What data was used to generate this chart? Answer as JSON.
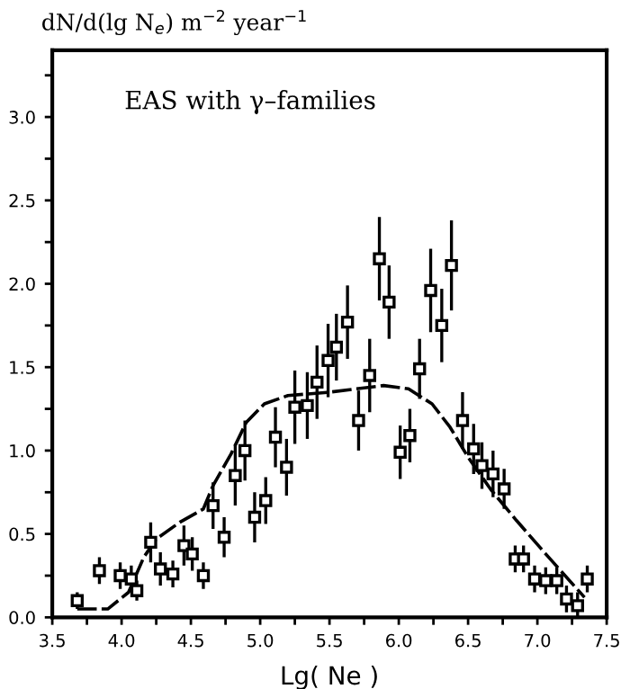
{
  "chart_data": {
    "type": "scatter",
    "title": "dN/d(lg N$_{e}$) m$^{−2}$ year$^{−1}$",
    "xlabel": "Lg( Ne )",
    "annotations": [
      "EAS with γ–families"
    ],
    "xlim": [
      3.5,
      7.5
    ],
    "ylim": [
      0,
      3.4
    ],
    "xticks": [
      {
        "value": 3.5,
        "label": "3.5"
      },
      {
        "value": 3.75,
        "label": null
      },
      {
        "value": 4.0,
        "label": "4.0"
      },
      {
        "value": 4.25,
        "label": null
      },
      {
        "value": 4.5,
        "label": "4.5"
      },
      {
        "value": 4.75,
        "label": null
      },
      {
        "value": 5.0,
        "label": "5.0"
      },
      {
        "value": 5.25,
        "label": null
      },
      {
        "value": 5.5,
        "label": "5.5"
      },
      {
        "value": 5.75,
        "label": null
      },
      {
        "value": 6.0,
        "label": "6.0"
      },
      {
        "value": 6.25,
        "label": null
      },
      {
        "value": 6.5,
        "label": "6.5"
      },
      {
        "value": 6.75,
        "label": null
      },
      {
        "value": 7.0,
        "label": "7.0"
      },
      {
        "value": 7.25,
        "label": null
      },
      {
        "value": 7.5,
        "label": "7.5"
      }
    ],
    "yticks": [
      {
        "value": 0,
        "label": "0.0"
      },
      {
        "value": 0.25,
        "label": null
      },
      {
        "value": 0.5,
        "label": "0.5"
      },
      {
        "value": 0.75,
        "label": null
      },
      {
        "value": 1.0,
        "label": "1.0"
      },
      {
        "value": 1.25,
        "label": null
      },
      {
        "value": 1.5,
        "label": "1.5"
      },
      {
        "value": 1.75,
        "label": null
      },
      {
        "value": 2.0,
        "label": "2.0"
      },
      {
        "value": 2.25,
        "label": null
      },
      {
        "value": 2.5,
        "label": "2.5"
      },
      {
        "value": 2.75,
        "label": null
      },
      {
        "value": 3.0,
        "label": "3.0"
      },
      {
        "value": 3.25,
        "label": null
      }
    ],
    "grid": false,
    "legend": false,
    "series": [
      {
        "marker": "square",
        "color": "#000000",
        "x": [
          3.68,
          3.84,
          3.99,
          4.07,
          4.11,
          4.21,
          4.28,
          4.37,
          4.45,
          4.51,
          4.59,
          4.66,
          4.74,
          4.82,
          4.89,
          4.96,
          5.04,
          5.11,
          5.19,
          5.25,
          5.34,
          5.41,
          5.49,
          5.55,
          5.63,
          5.71,
          5.79,
          5.86,
          5.93,
          6.01,
          6.08,
          6.15,
          6.23,
          6.31,
          6.38,
          6.46,
          6.54,
          6.6,
          6.68,
          6.76,
          6.84,
          6.9,
          6.98,
          7.06,
          7.14,
          7.21,
          7.29,
          7.36
        ],
        "values": [
          0.1,
          0.28,
          0.25,
          0.23,
          0.16,
          0.45,
          0.29,
          0.26,
          0.43,
          0.38,
          0.25,
          0.67,
          0.48,
          0.85,
          1.0,
          0.6,
          0.7,
          1.08,
          0.9,
          1.26,
          1.27,
          1.41,
          1.54,
          1.62,
          1.77,
          1.18,
          1.45,
          2.15,
          1.89,
          0.99,
          1.09,
          1.49,
          1.96,
          1.75,
          2.11,
          1.18,
          1.01,
          0.91,
          0.86,
          0.77,
          0.35,
          0.35,
          0.23,
          0.22,
          0.22,
          0.11,
          0.07,
          0.23
        ],
        "errors": [
          0.05,
          0.08,
          0.08,
          0.08,
          0.06,
          0.12,
          0.1,
          0.08,
          0.12,
          0.1,
          0.08,
          0.14,
          0.12,
          0.18,
          0.18,
          0.15,
          0.14,
          0.18,
          0.17,
          0.22,
          0.2,
          0.22,
          0.22,
          0.2,
          0.22,
          0.18,
          0.22,
          0.25,
          0.22,
          0.16,
          0.16,
          0.18,
          0.25,
          0.22,
          0.27,
          0.17,
          0.15,
          0.14,
          0.14,
          0.12,
          0.08,
          0.08,
          0.08,
          0.08,
          0.08,
          0.08,
          0.08,
          0.08
        ]
      },
      {
        "type": "line",
        "line_style": "dashed",
        "color": "#000000",
        "x": [
          3.68,
          3.9,
          4.05,
          4.16,
          4.25,
          4.42,
          4.59,
          4.66,
          4.79,
          4.9,
          5.03,
          5.2,
          5.5,
          5.89,
          6.07,
          6.24,
          6.37,
          6.5,
          6.67,
          6.85,
          7.06,
          7.34
        ],
        "values": [
          0.05,
          0.05,
          0.15,
          0.36,
          0.47,
          0.57,
          0.65,
          0.79,
          0.98,
          1.17,
          1.28,
          1.33,
          1.35,
          1.39,
          1.37,
          1.28,
          1.14,
          0.96,
          0.76,
          0.58,
          0.38,
          0.12
        ]
      }
    ]
  }
}
